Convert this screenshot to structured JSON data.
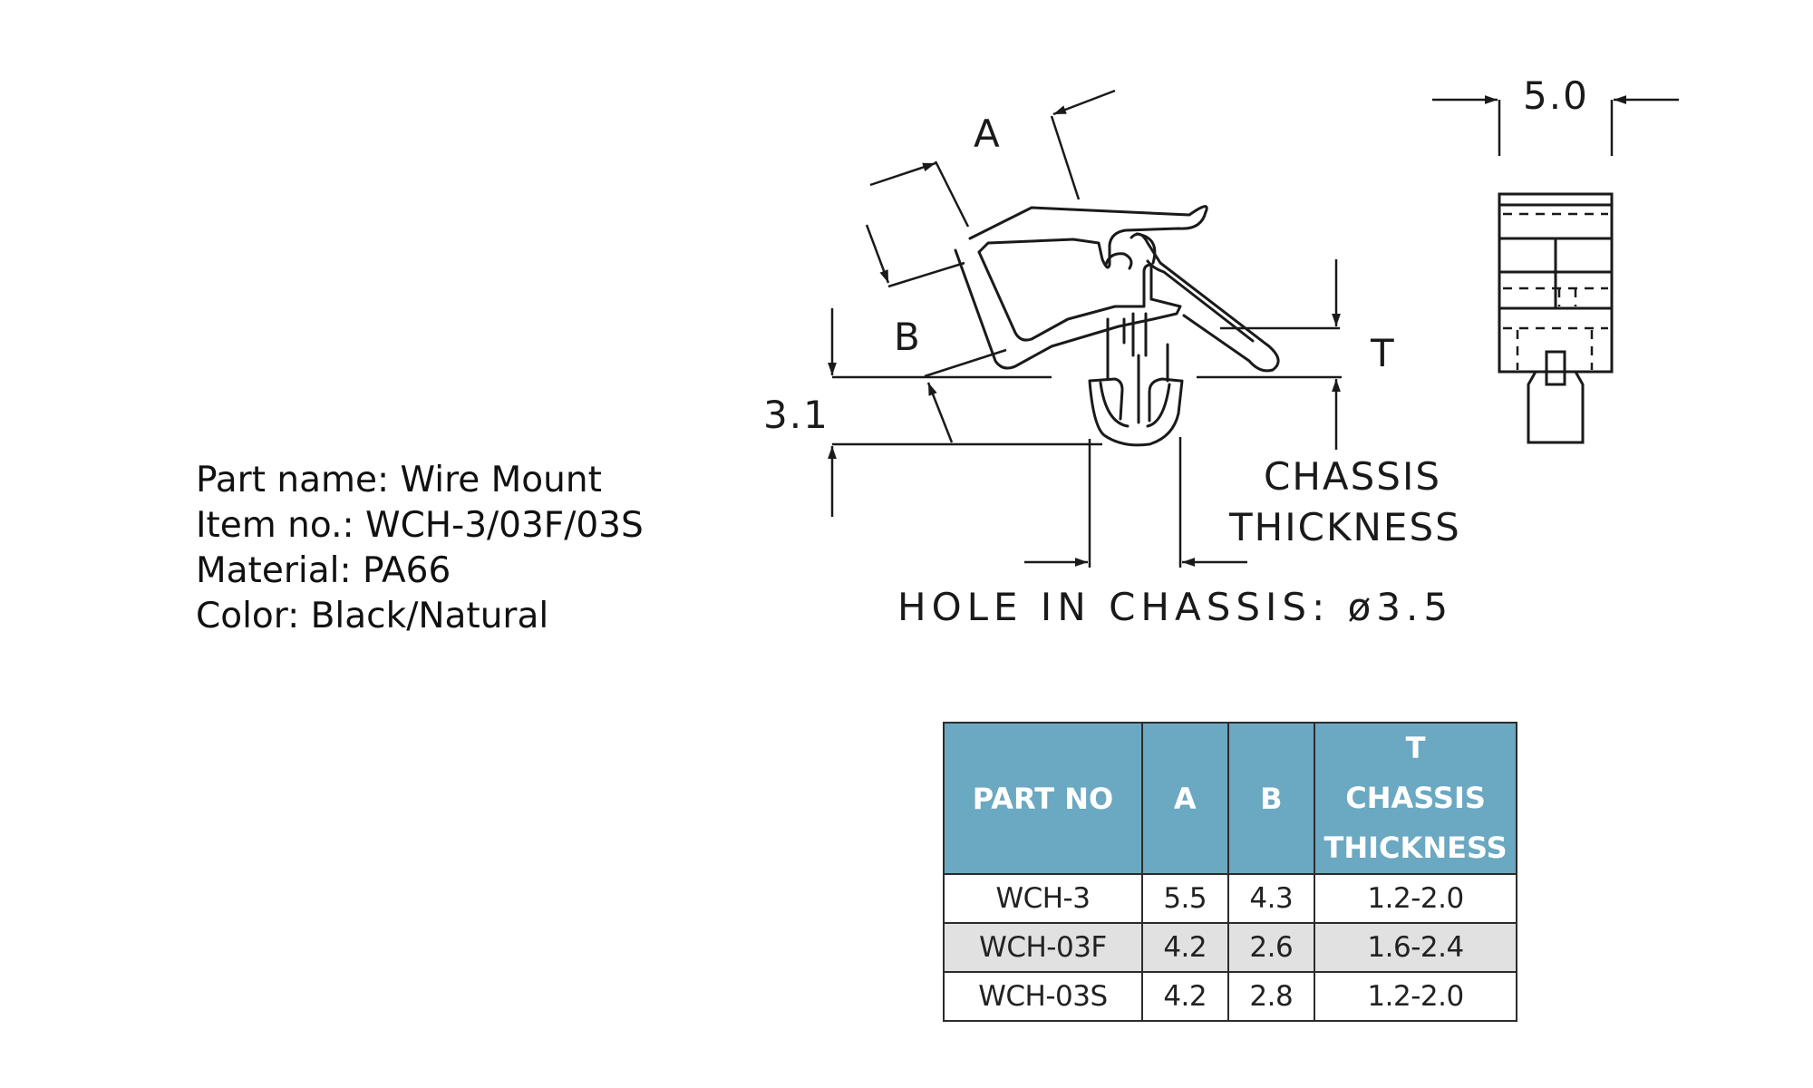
{
  "product": {
    "part_name": "Part name: Wire Mount",
    "item_no": "Item no.: WCH-3/03F/03S",
    "material": "Material: PA66",
    "color": "Color: Black/Natural"
  },
  "drawing": {
    "label_a": "A",
    "label_b": "B",
    "label_t": "T",
    "dim_3_1": "3.1",
    "dim_5_0": "5.0",
    "chassis_line1": "CHASSIS",
    "chassis_line2": "THICKNESS",
    "hole_label": "HOLE IN CHASSIS: ø3.5"
  },
  "table": {
    "headers": {
      "part_no": "PART NO",
      "a": "A",
      "b": "B",
      "t_line1": "T",
      "t_line2": "CHASSIS",
      "t_line3": "THICKNESS"
    },
    "rows": [
      {
        "part_no": "WCH-3",
        "a": "5.5",
        "b": "4.3",
        "t": "1.2-2.0"
      },
      {
        "part_no": "WCH-03F",
        "a": "4.2",
        "b": "2.6",
        "t": "1.6-2.4"
      },
      {
        "part_no": "WCH-03S",
        "a": "4.2",
        "b": "2.8",
        "t": "1.2-2.0"
      }
    ]
  }
}
